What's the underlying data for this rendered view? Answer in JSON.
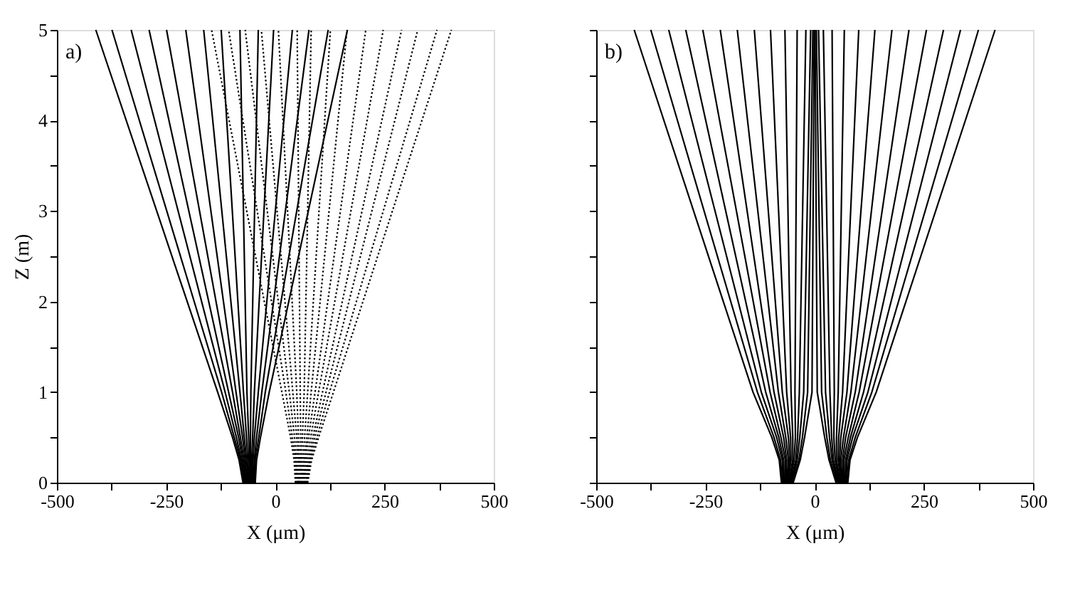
{
  "chart_data": [
    {
      "type": "line",
      "xlabel": "X (μm)",
      "ylabel": "Z (m)",
      "annotations": [
        "a)"
      ],
      "xlim": [
        -500,
        500
      ],
      "ylim": [
        0,
        5
      ],
      "xticks": [
        -500,
        {
          "value": -375,
          "label": null
        },
        -250,
        {
          "value": -125,
          "label": null
        },
        0,
        {
          "value": 125,
          "label": null
        },
        250,
        {
          "value": 375,
          "label": null
        },
        500
      ],
      "yticks": [
        0,
        {
          "value": 0.5,
          "label": null
        },
        1,
        {
          "value": 1.5,
          "label": null
        },
        2,
        {
          "value": 2.5,
          "label": null
        },
        3,
        {
          "value": 3.5,
          "label": null
        },
        4,
        {
          "value": 4.5,
          "label": null
        },
        5
      ],
      "grid": false,
      "marker": "none",
      "series": [
        {
          "color": "#000000",
          "line_style": "solid",
          "x": [
            -74,
            -83,
            -98,
            -132,
            -411
          ],
          "values": [
            0,
            0.25,
            0.5,
            1,
            5
          ]
        },
        {
          "color": "#000000",
          "line_style": "solid",
          "x": [
            -72,
            -80,
            -94,
            -123,
            -374
          ],
          "values": [
            0,
            0.25,
            0.5,
            1,
            5
          ]
        },
        {
          "color": "#000000",
          "line_style": "solid",
          "x": [
            -70,
            -78,
            -89,
            -115,
            -330
          ],
          "values": [
            0,
            0.25,
            0.5,
            1,
            5
          ]
        },
        {
          "color": "#000000",
          "line_style": "solid",
          "x": [
            -68,
            -75,
            -84,
            -107,
            -289
          ],
          "values": [
            0,
            0.25,
            0.5,
            1,
            5
          ]
        },
        {
          "color": "#000000",
          "line_style": "solid",
          "x": [
            -66,
            -72,
            -80,
            -98,
            -249
          ],
          "values": [
            0,
            0.25,
            0.5,
            1,
            5
          ]
        },
        {
          "color": "#000000",
          "line_style": "solid",
          "x": [
            -64,
            -69,
            -75,
            -90,
            -205
          ],
          "values": [
            0,
            0.25,
            0.5,
            1,
            5
          ]
        },
        {
          "color": "#000000",
          "line_style": "solid",
          "x": [
            -62,
            -66,
            -71,
            -81,
            -164
          ],
          "values": [
            0,
            0.25,
            0.5,
            1,
            5
          ]
        },
        {
          "color": "#000000",
          "line_style": "solid",
          "x": [
            -60,
            -63,
            -66,
            -73,
            -124
          ],
          "values": [
            0,
            0.25,
            0.5,
            1,
            5
          ]
        },
        {
          "color": "#000000",
          "line_style": "solid",
          "x": [
            -58,
            -60,
            -61,
            -65,
            -81
          ],
          "values": [
            0,
            0.25,
            0.5,
            1,
            5
          ]
        },
        {
          "color": "#000000",
          "line_style": "solid",
          "x": [
            -56,
            -57,
            -57,
            -56,
            -39
          ],
          "values": [
            0,
            0.25,
            0.5,
            1,
            5
          ]
        },
        {
          "color": "#000000",
          "line_style": "solid",
          "x": [
            -54,
            -54,
            -52,
            -48,
            -4
          ],
          "values": [
            0,
            0.25,
            0.5,
            1,
            5
          ]
        },
        {
          "color": "#000000",
          "line_style": "solid",
          "x": [
            -52,
            -51,
            -48,
            -39,
            39
          ],
          "values": [
            0,
            0.25,
            0.5,
            1,
            5
          ]
        },
        {
          "color": "#000000",
          "line_style": "solid",
          "x": [
            -50,
            -48,
            -43,
            -31,
            77
          ],
          "values": [
            0,
            0.25,
            0.5,
            1,
            5
          ]
        },
        {
          "color": "#000000",
          "line_style": "solid",
          "x": [
            -48,
            -46,
            -38,
            -23,
            121
          ],
          "values": [
            0,
            0.25,
            0.5,
            1,
            5
          ]
        },
        {
          "color": "#000000",
          "line_style": "solid",
          "x": [
            -46,
            -43,
            -34,
            -14,
            165
          ],
          "values": [
            0,
            0.25,
            0.5,
            1,
            5
          ]
        },
        {
          "color": "#000000",
          "line_style": "dotted",
          "x": [
            46,
            43,
            35,
            15,
            -146
          ],
          "values": [
            0,
            0.25,
            0.5,
            1,
            5
          ]
        },
        {
          "color": "#000000",
          "line_style": "dotted",
          "x": [
            48,
            46,
            39,
            24,
            -107
          ],
          "values": [
            0,
            0.25,
            0.5,
            1,
            5
          ]
        },
        {
          "color": "#000000",
          "line_style": "dotted",
          "x": [
            50,
            48,
            44,
            32,
            -69
          ],
          "values": [
            0,
            0.25,
            0.5,
            1,
            5
          ]
        },
        {
          "color": "#000000",
          "line_style": "dotted",
          "x": [
            52,
            51,
            49,
            40,
            -32
          ],
          "values": [
            0,
            0.25,
            0.5,
            1,
            5
          ]
        },
        {
          "color": "#000000",
          "line_style": "dotted",
          "x": [
            54,
            54,
            53,
            49,
            7
          ],
          "values": [
            0,
            0.25,
            0.5,
            1,
            5
          ]
        },
        {
          "color": "#000000",
          "line_style": "dotted",
          "x": [
            56,
            57,
            58,
            57,
            50
          ],
          "values": [
            0,
            0.25,
            0.5,
            1,
            5
          ]
        },
        {
          "color": "#000000",
          "line_style": "dotted",
          "x": [
            58,
            60,
            62,
            66,
            82
          ],
          "values": [
            0,
            0.25,
            0.5,
            1,
            5
          ]
        },
        {
          "color": "#000000",
          "line_style": "dotted",
          "x": [
            60,
            63,
            67,
            74,
            126
          ],
          "values": [
            0,
            0.25,
            0.5,
            1,
            5
          ]
        },
        {
          "color": "#000000",
          "line_style": "dotted",
          "x": [
            62,
            66,
            72,
            82,
            164
          ],
          "values": [
            0,
            0.25,
            0.5,
            1,
            5
          ]
        },
        {
          "color": "#000000",
          "line_style": "dotted",
          "x": [
            64,
            69,
            76,
            91,
            207
          ],
          "values": [
            0,
            0.25,
            0.5,
            1,
            5
          ]
        },
        {
          "color": "#000000",
          "line_style": "dotted",
          "x": [
            66,
            72,
            81,
            99,
            247
          ],
          "values": [
            0,
            0.25,
            0.5,
            1,
            5
          ]
        },
        {
          "color": "#000000",
          "line_style": "dotted",
          "x": [
            68,
            75,
            86,
            108,
            289
          ],
          "values": [
            0,
            0.25,
            0.5,
            1,
            5
          ]
        },
        {
          "color": "#000000",
          "line_style": "dotted",
          "x": [
            70,
            78,
            90,
            116,
            326
          ],
          "values": [
            0,
            0.25,
            0.5,
            1,
            5
          ]
        },
        {
          "color": "#000000",
          "line_style": "dotted",
          "x": [
            72,
            80,
            95,
            124,
            370
          ],
          "values": [
            0,
            0.25,
            0.5,
            1,
            5
          ]
        },
        {
          "color": "#000000",
          "line_style": "dotted",
          "x": [
            74,
            83,
            99,
            133,
            403
          ],
          "values": [
            0,
            0.25,
            0.5,
            1,
            5
          ]
        }
      ]
    },
    {
      "type": "line",
      "xlabel": "X (μm)",
      "annotations": [
        "b)"
      ],
      "xlim": [
        -500,
        500
      ],
      "ylim": [
        0,
        5
      ],
      "tick_labels": "x",
      "xticks": [
        -500,
        {
          "value": -375,
          "label": null
        },
        -250,
        {
          "value": -125,
          "label": null
        },
        0,
        {
          "value": 125,
          "label": null
        },
        250,
        {
          "value": 375,
          "label": null
        },
        500
      ],
      "yticks": [
        0,
        {
          "value": 0.5,
          "label": null
        },
        1,
        {
          "value": 1.5,
          "label": null
        },
        2,
        {
          "value": 2.5,
          "label": null
        },
        3,
        {
          "value": 3.5,
          "label": null
        },
        4,
        {
          "value": 4.5,
          "label": null
        },
        5
      ],
      "grid": false,
      "marker": "none",
      "series": [
        {
          "color": "#000000",
          "line_style": "solid",
          "x": [
            -76,
            -81,
            -98,
            -141,
            -413
          ],
          "values": [
            0,
            0.25,
            0.5,
            1,
            5
          ]
        },
        {
          "color": "#000000",
          "line_style": "solid",
          "x": [
            -74,
            -78,
            -93,
            -131,
            -375
          ],
          "values": [
            0,
            0.25,
            0.5,
            1,
            5
          ]
        },
        {
          "color": "#000000",
          "line_style": "solid",
          "x": [
            -72,
            -74,
            -87,
            -122,
            -334
          ],
          "values": [
            0,
            0.25,
            0.5,
            1,
            5
          ]
        },
        {
          "color": "#000000",
          "line_style": "solid",
          "x": [
            -70,
            -71,
            -82,
            -112,
            -295
          ],
          "values": [
            0,
            0.25,
            0.5,
            1,
            5
          ]
        },
        {
          "color": "#000000",
          "line_style": "solid",
          "x": [
            -68,
            -67,
            -77,
            -102,
            -256
          ],
          "values": [
            0,
            0.25,
            0.5,
            1,
            5
          ]
        },
        {
          "color": "#000000",
          "line_style": "solid",
          "x": [
            -66,
            -64,
            -71,
            -93,
            -216
          ],
          "values": [
            0,
            0.25,
            0.5,
            1,
            5
          ]
        },
        {
          "color": "#000000",
          "line_style": "solid",
          "x": [
            -64,
            -60,
            -66,
            -83,
            -177
          ],
          "values": [
            0,
            0.25,
            0.5,
            1,
            5
          ]
        },
        {
          "color": "#000000",
          "line_style": "solid",
          "x": [
            -62,
            -57,
            -60,
            -74,
            -138
          ],
          "values": [
            0,
            0.25,
            0.5,
            1,
            5
          ]
        },
        {
          "color": "#000000",
          "line_style": "solid",
          "x": [
            -61,
            -54,
            -55,
            -64,
            -101
          ],
          "values": [
            0,
            0.25,
            0.5,
            1,
            5
          ]
        },
        {
          "color": "#000000",
          "line_style": "solid",
          "x": [
            -59,
            -50,
            -50,
            -54,
            -68
          ],
          "values": [
            0,
            0.25,
            0.5,
            1,
            5
          ]
        },
        {
          "color": "#000000",
          "line_style": "solid",
          "x": [
            -57,
            -47,
            -44,
            -45,
            -40
          ],
          "values": [
            0,
            0.25,
            0.5,
            1,
            5
          ]
        },
        {
          "color": "#000000",
          "line_style": "solid",
          "x": [
            -55,
            -43,
            -39,
            -35,
            -20
          ],
          "values": [
            0,
            0.25,
            0.5,
            1,
            5
          ]
        },
        {
          "color": "#000000",
          "line_style": "solid",
          "x": [
            -53,
            -40,
            -34,
            -25,
            -9
          ],
          "values": [
            0,
            0.25,
            0.5,
            1,
            5
          ]
        },
        {
          "color": "#000000",
          "line_style": "solid",
          "x": [
            -51,
            -36,
            -28,
            -16,
            -4
          ],
          "values": [
            0,
            0.25,
            0.5,
            1,
            5
          ]
        },
        {
          "color": "#000000",
          "line_style": "solid",
          "x": [
            -49,
            -33,
            -23,
            -6,
            -1
          ],
          "values": [
            0,
            0.25,
            0.5,
            1,
            5
          ]
        },
        {
          "color": "#000000",
          "line_style": "solid",
          "x": [
            49,
            33,
            23,
            6,
            1
          ],
          "values": [
            0,
            0.25,
            0.5,
            1,
            5
          ]
        },
        {
          "color": "#000000",
          "line_style": "solid",
          "x": [
            51,
            36,
            28,
            16,
            4
          ],
          "values": [
            0,
            0.25,
            0.5,
            1,
            5
          ]
        },
        {
          "color": "#000000",
          "line_style": "solid",
          "x": [
            53,
            40,
            34,
            25,
            9
          ],
          "values": [
            0,
            0.25,
            0.5,
            1,
            5
          ]
        },
        {
          "color": "#000000",
          "line_style": "solid",
          "x": [
            55,
            43,
            39,
            35,
            20
          ],
          "values": [
            0,
            0.25,
            0.5,
            1,
            5
          ]
        },
        {
          "color": "#000000",
          "line_style": "solid",
          "x": [
            57,
            47,
            44,
            45,
            40
          ],
          "values": [
            0,
            0.25,
            0.5,
            1,
            5
          ]
        },
        {
          "color": "#000000",
          "line_style": "solid",
          "x": [
            59,
            50,
            50,
            54,
            68
          ],
          "values": [
            0,
            0.25,
            0.5,
            1,
            5
          ]
        },
        {
          "color": "#000000",
          "line_style": "solid",
          "x": [
            61,
            54,
            55,
            64,
            101
          ],
          "values": [
            0,
            0.25,
            0.5,
            1,
            5
          ]
        },
        {
          "color": "#000000",
          "line_style": "solid",
          "x": [
            62,
            57,
            60,
            74,
            138
          ],
          "values": [
            0,
            0.25,
            0.5,
            1,
            5
          ]
        },
        {
          "color": "#000000",
          "line_style": "solid",
          "x": [
            64,
            60,
            66,
            83,
            177
          ],
          "values": [
            0,
            0.25,
            0.5,
            1,
            5
          ]
        },
        {
          "color": "#000000",
          "line_style": "solid",
          "x": [
            66,
            64,
            71,
            93,
            216
          ],
          "values": [
            0,
            0.25,
            0.5,
            1,
            5
          ]
        },
        {
          "color": "#000000",
          "line_style": "solid",
          "x": [
            68,
            67,
            77,
            102,
            256
          ],
          "values": [
            0,
            0.25,
            0.5,
            1,
            5
          ]
        },
        {
          "color": "#000000",
          "line_style": "solid",
          "x": [
            70,
            71,
            82,
            112,
            295
          ],
          "values": [
            0,
            0.25,
            0.5,
            1,
            5
          ]
        },
        {
          "color": "#000000",
          "line_style": "solid",
          "x": [
            72,
            74,
            87,
            122,
            334
          ],
          "values": [
            0,
            0.25,
            0.5,
            1,
            5
          ]
        },
        {
          "color": "#000000",
          "line_style": "solid",
          "x": [
            74,
            78,
            93,
            131,
            375
          ],
          "values": [
            0,
            0.25,
            0.5,
            1,
            5
          ]
        },
        {
          "color": "#000000",
          "line_style": "solid",
          "x": [
            76,
            81,
            98,
            141,
            413
          ],
          "values": [
            0,
            0.25,
            0.5,
            1,
            5
          ]
        }
      ]
    }
  ]
}
